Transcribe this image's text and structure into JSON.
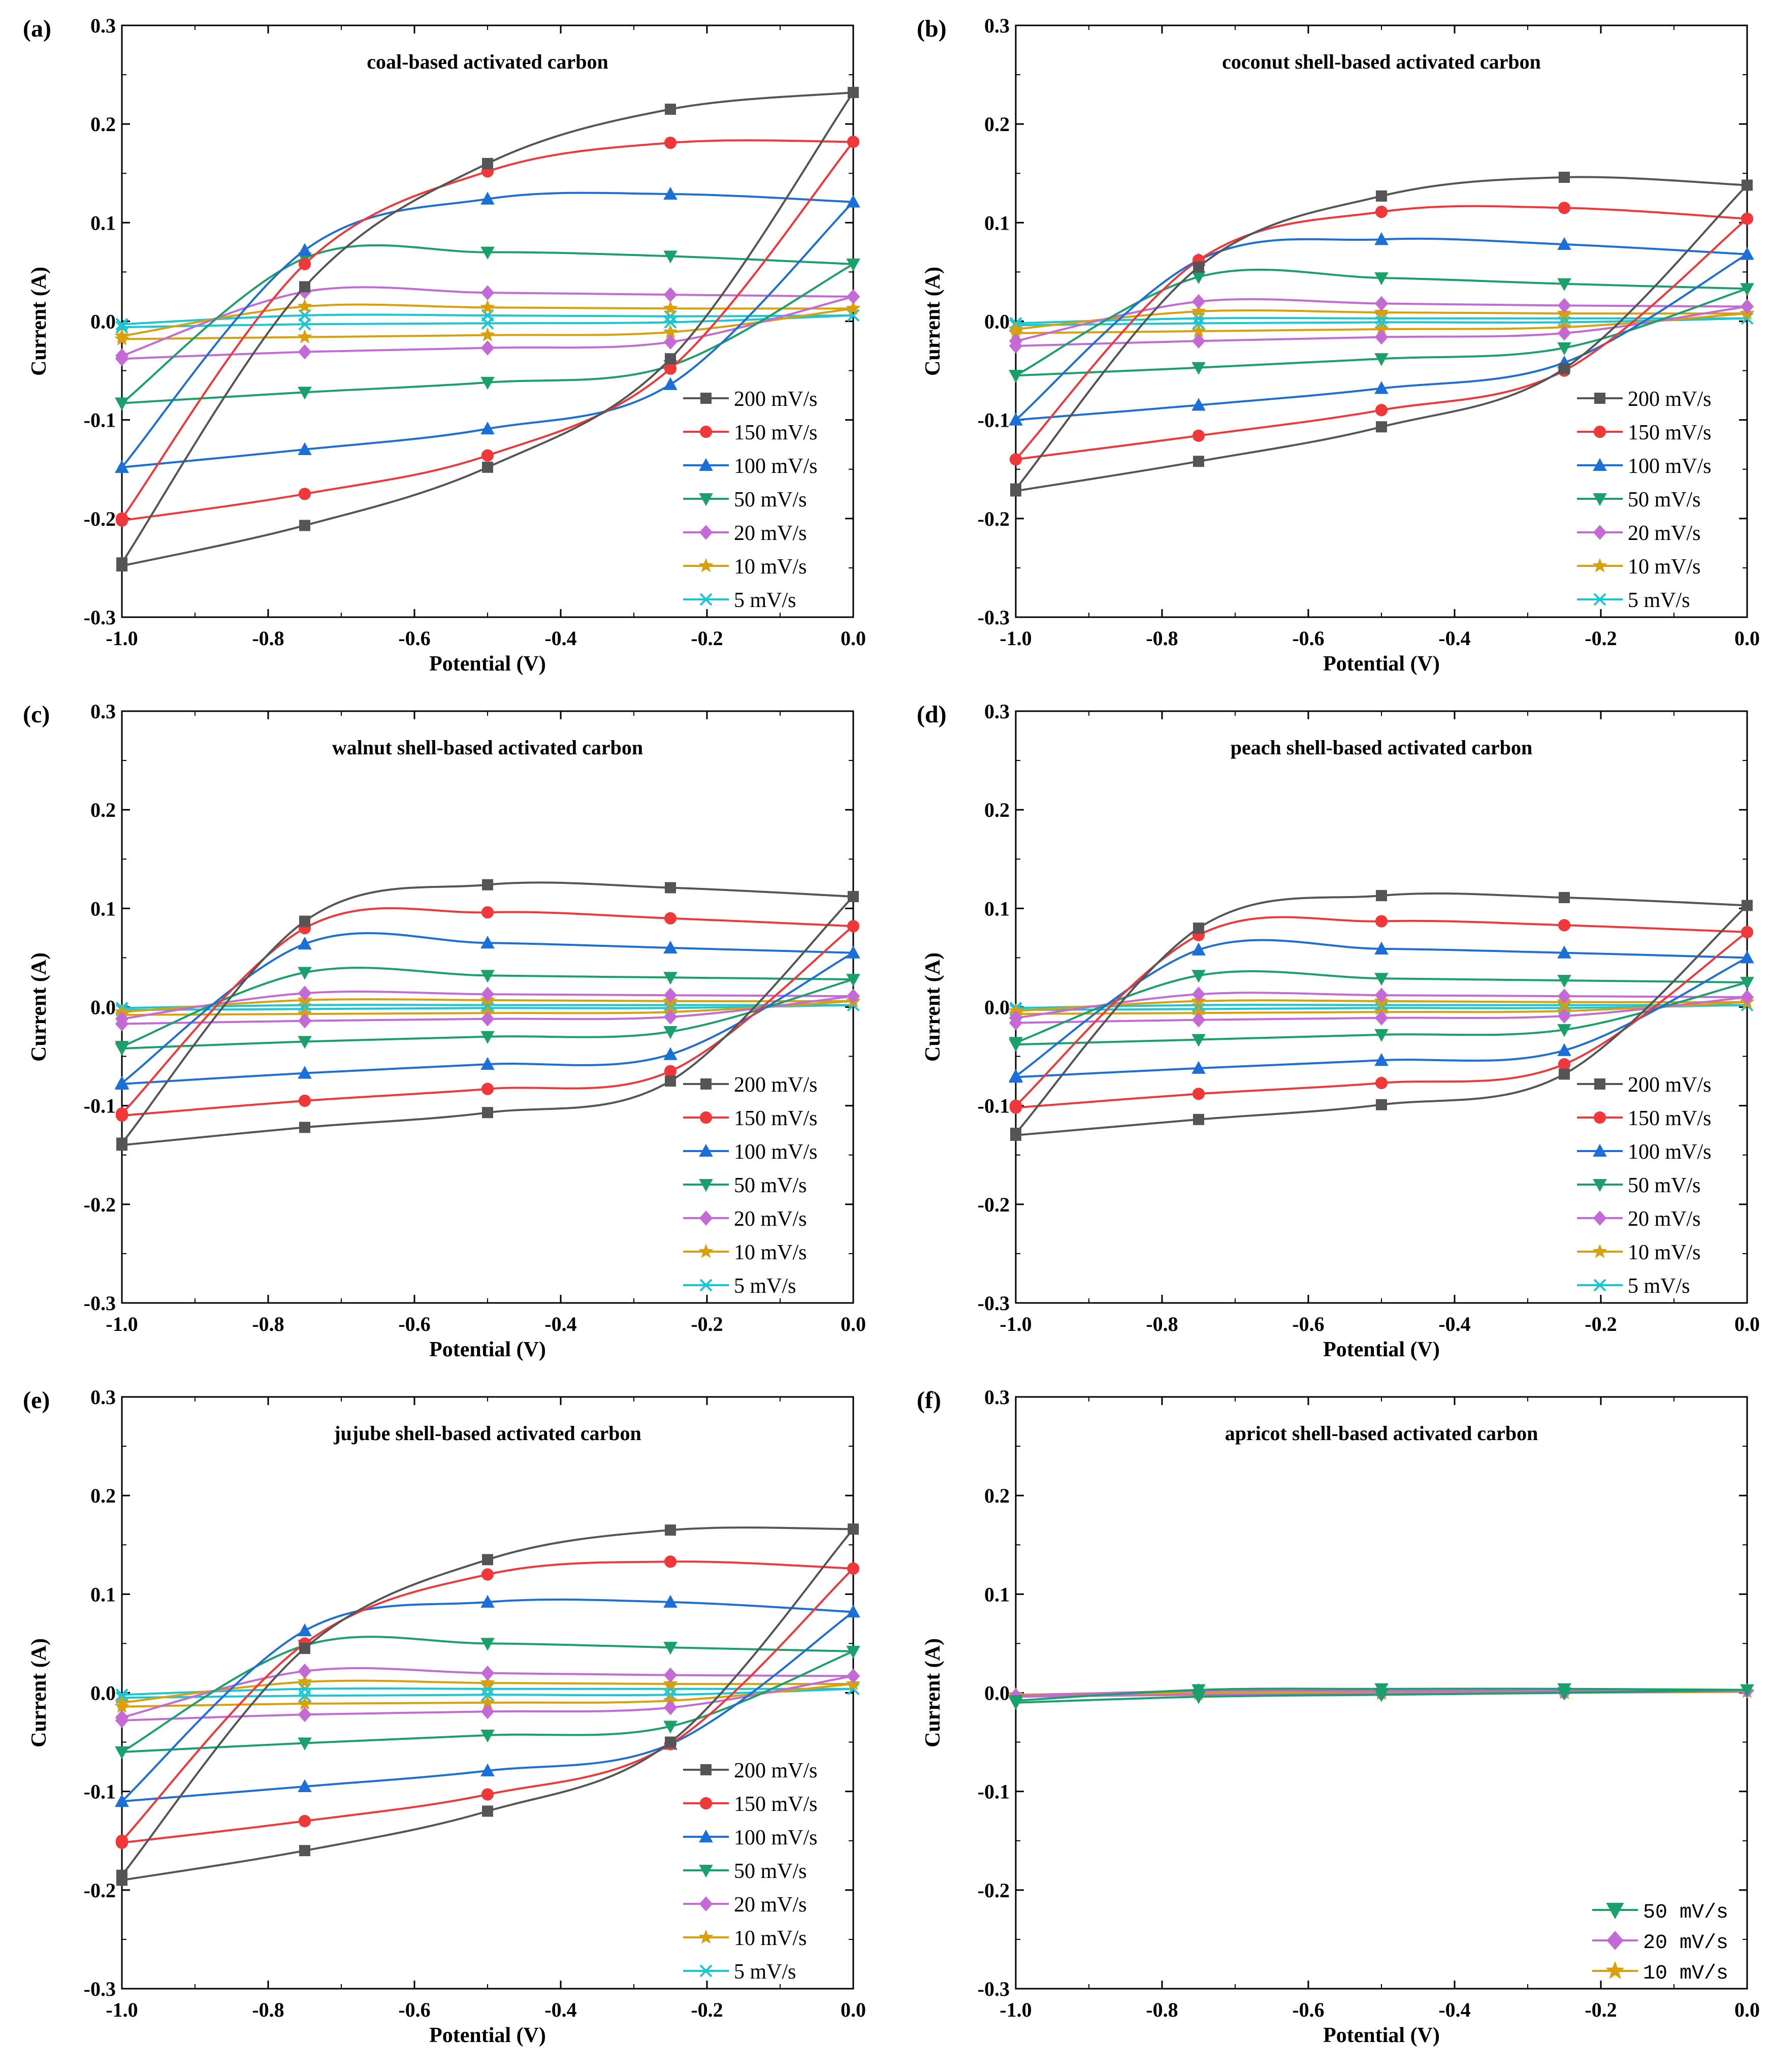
{
  "chart_data": [
    {
      "panel": "(a)",
      "title": "coal-based activated carbon",
      "type": "line",
      "xlabel": "Potential (V)",
      "ylabel": "Current (A)",
      "xlim": [
        -1.0,
        0.0
      ],
      "ylim": [
        -0.3,
        0.3
      ],
      "xticks": [
        "-1.0",
        "-0.8",
        "-0.6",
        "-0.4",
        "-0.2",
        "0.0"
      ],
      "yticks": [
        "-0.3",
        "-0.2",
        "-0.1",
        "0.0",
        "0.1",
        "0.2",
        "0.3"
      ],
      "legend_position": "lower-right",
      "series": [
        {
          "name": "200 mV/s",
          "upper": [
            -0.245,
            0.035,
            0.16,
            0.215,
            0.232
          ],
          "lower": [
            -0.248,
            -0.207,
            -0.148,
            -0.038,
            0.232
          ]
        },
        {
          "name": "150 mV/s",
          "upper": [
            -0.2,
            0.058,
            0.152,
            0.181,
            0.182
          ],
          "lower": [
            -0.202,
            -0.175,
            -0.136,
            -0.048,
            0.182
          ]
        },
        {
          "name": "100 mV/s",
          "upper": [
            -0.148,
            0.072,
            0.124,
            0.129,
            0.121
          ],
          "lower": [
            -0.148,
            -0.13,
            -0.109,
            -0.064,
            0.121
          ]
        },
        {
          "name": "50 mV/s",
          "upper": [
            -0.083,
            0.064,
            0.07,
            0.066,
            0.058
          ],
          "lower": [
            -0.083,
            -0.072,
            -0.062,
            -0.045,
            0.058
          ]
        },
        {
          "name": "20 mV/s",
          "upper": [
            -0.035,
            0.03,
            0.029,
            0.027,
            0.025
          ],
          "lower": [
            -0.038,
            -0.031,
            -0.027,
            -0.021,
            0.025
          ]
        },
        {
          "name": "10 mV/s",
          "upper": [
            -0.015,
            0.015,
            0.014,
            0.013,
            0.013
          ],
          "lower": [
            -0.018,
            -0.016,
            -0.014,
            -0.011,
            0.013
          ]
        },
        {
          "name": "5 mV/s",
          "upper": [
            -0.003,
            0.006,
            0.006,
            0.005,
            0.006
          ],
          "lower": [
            -0.006,
            -0.003,
            -0.002,
            -0.001,
            0.006
          ]
        }
      ]
    },
    {
      "panel": "(b)",
      "title": "coconut shell-based activated carbon",
      "type": "line",
      "xlabel": "Potential (V)",
      "ylabel": "Current (A)",
      "xlim": [
        -1.0,
        0.0
      ],
      "ylim": [
        -0.3,
        0.3
      ],
      "xticks": [
        "-1.0",
        "-0.8",
        "-0.6",
        "-0.4",
        "-0.2",
        "0.0"
      ],
      "yticks": [
        "-0.3",
        "-0.2",
        "-0.1",
        "0.0",
        "0.1",
        "0.2",
        "0.3"
      ],
      "legend_position": "lower-right",
      "series": [
        {
          "name": "200 mV/s",
          "upper": [
            -0.17,
            0.055,
            0.127,
            0.146,
            0.138
          ],
          "lower": [
            -0.172,
            -0.142,
            -0.107,
            -0.048,
            0.138
          ]
        },
        {
          "name": "150 mV/s",
          "upper": [
            -0.14,
            0.062,
            0.111,
            0.115,
            0.104
          ],
          "lower": [
            -0.14,
            -0.116,
            -0.09,
            -0.05,
            0.104
          ]
        },
        {
          "name": "100 mV/s",
          "upper": [
            -0.1,
            0.062,
            0.083,
            0.078,
            0.068
          ],
          "lower": [
            -0.1,
            -0.085,
            -0.068,
            -0.042,
            0.068
          ]
        },
        {
          "name": "50 mV/s",
          "upper": [
            -0.055,
            0.045,
            0.044,
            0.038,
            0.033
          ],
          "lower": [
            -0.055,
            -0.047,
            -0.038,
            -0.027,
            0.033
          ]
        },
        {
          "name": "20 mV/s",
          "upper": [
            -0.02,
            0.02,
            0.018,
            0.016,
            0.015
          ],
          "lower": [
            -0.025,
            -0.02,
            -0.016,
            -0.012,
            0.015
          ]
        },
        {
          "name": "10 mV/s",
          "upper": [
            -0.008,
            0.01,
            0.009,
            0.008,
            0.008
          ],
          "lower": [
            -0.012,
            -0.01,
            -0.008,
            -0.006,
            0.008
          ]
        },
        {
          "name": "5 mV/s",
          "upper": [
            -0.002,
            0.003,
            0.003,
            0.003,
            0.003
          ],
          "lower": [
            -0.004,
            -0.002,
            -0.001,
            -0.001,
            0.003
          ]
        }
      ]
    },
    {
      "panel": "(c)",
      "title": "walnut shell-based activated carbon",
      "type": "line",
      "xlabel": "Potential (V)",
      "ylabel": "Current (A)",
      "xlim": [
        -1.0,
        0.0
      ],
      "ylim": [
        -0.3,
        0.3
      ],
      "xticks": [
        "-1.0",
        "-0.8",
        "-0.6",
        "-0.4",
        "-0.2",
        "0.0"
      ],
      "yticks": [
        "-0.3",
        "-0.2",
        "-0.1",
        "0.0",
        "0.1",
        "0.2",
        "0.3"
      ],
      "legend_position": "lower-right",
      "series": [
        {
          "name": "200 mV/s",
          "upper": [
            -0.138,
            0.087,
            0.124,
            0.121,
            0.112
          ],
          "lower": [
            -0.14,
            -0.122,
            -0.107,
            -0.075,
            0.112
          ]
        },
        {
          "name": "150 mV/s",
          "upper": [
            -0.108,
            0.08,
            0.096,
            0.09,
            0.082
          ],
          "lower": [
            -0.11,
            -0.095,
            -0.083,
            -0.065,
            0.082
          ]
        },
        {
          "name": "100 mV/s",
          "upper": [
            -0.077,
            0.064,
            0.065,
            0.06,
            0.055
          ],
          "lower": [
            -0.078,
            -0.067,
            -0.058,
            -0.048,
            0.055
          ]
        },
        {
          "name": "50 mV/s",
          "upper": [
            -0.04,
            0.035,
            0.032,
            0.03,
            0.028
          ],
          "lower": [
            -0.042,
            -0.035,
            -0.03,
            -0.025,
            0.028
          ]
        },
        {
          "name": "20 mV/s",
          "upper": [
            -0.012,
            0.014,
            0.013,
            0.012,
            0.011
          ],
          "lower": [
            -0.017,
            -0.014,
            -0.012,
            -0.01,
            0.011
          ]
        },
        {
          "name": "10 mV/s",
          "upper": [
            -0.005,
            0.007,
            0.007,
            0.006,
            0.006
          ],
          "lower": [
            -0.008,
            -0.007,
            -0.006,
            -0.005,
            0.006
          ]
        },
        {
          "name": "5 mV/s",
          "upper": [
            -0.001,
            0.002,
            0.002,
            0.002,
            0.002
          ],
          "lower": [
            -0.003,
            -0.002,
            -0.001,
            -0.001,
            0.002
          ]
        }
      ]
    },
    {
      "panel": "(d)",
      "title": "peach shell-based activated carbon",
      "type": "line",
      "xlabel": "Potential (V)",
      "ylabel": "Current (A)",
      "xlim": [
        -1.0,
        0.0
      ],
      "ylim": [
        -0.3,
        0.3
      ],
      "xticks": [
        "-1.0",
        "-0.8",
        "-0.6",
        "-0.4",
        "-0.2",
        "0.0"
      ],
      "yticks": [
        "-0.3",
        "-0.2",
        "-0.1",
        "0.0",
        "0.1",
        "0.2",
        "0.3"
      ],
      "legend_position": "lower-right",
      "series": [
        {
          "name": "200 mV/s",
          "upper": [
            -0.128,
            0.08,
            0.113,
            0.111,
            0.103
          ],
          "lower": [
            -0.13,
            -0.114,
            -0.099,
            -0.068,
            0.103
          ]
        },
        {
          "name": "150 mV/s",
          "upper": [
            -0.1,
            0.073,
            0.087,
            0.083,
            0.076
          ],
          "lower": [
            -0.102,
            -0.088,
            -0.077,
            -0.058,
            0.076
          ]
        },
        {
          "name": "100 mV/s",
          "upper": [
            -0.07,
            0.058,
            0.059,
            0.055,
            0.05
          ],
          "lower": [
            -0.071,
            -0.062,
            -0.054,
            -0.044,
            0.05
          ]
        },
        {
          "name": "50 mV/s",
          "upper": [
            -0.036,
            0.032,
            0.029,
            0.027,
            0.025
          ],
          "lower": [
            -0.038,
            -0.033,
            -0.028,
            -0.023,
            0.025
          ]
        },
        {
          "name": "20 mV/s",
          "upper": [
            -0.011,
            0.013,
            0.012,
            0.011,
            0.01
          ],
          "lower": [
            -0.016,
            -0.013,
            -0.011,
            -0.009,
            0.01
          ]
        },
        {
          "name": "10 mV/s",
          "upper": [
            -0.004,
            0.006,
            0.006,
            0.005,
            0.005
          ],
          "lower": [
            -0.007,
            -0.006,
            -0.005,
            -0.004,
            0.005
          ]
        },
        {
          "name": "5 mV/s",
          "upper": [
            -0.001,
            0.002,
            0.002,
            0.002,
            0.002
          ],
          "lower": [
            -0.003,
            -0.002,
            -0.001,
            -0.001,
            0.002
          ]
        }
      ]
    },
    {
      "panel": "(e)",
      "title": "jujube shell-based activated carbon",
      "type": "line",
      "xlabel": "Potential (V)",
      "ylabel": "Current (A)",
      "xlim": [
        -1.0,
        0.0
      ],
      "ylim": [
        -0.3,
        0.3
      ],
      "xticks": [
        "-1.0",
        "-0.8",
        "-0.6",
        "-0.4",
        "-0.2",
        "0.0"
      ],
      "yticks": [
        "-0.3",
        "-0.2",
        "-0.1",
        "0.0",
        "0.1",
        "0.2",
        "0.3"
      ],
      "legend_position": "lower-right",
      "series": [
        {
          "name": "200 mV/s",
          "upper": [
            -0.185,
            0.045,
            0.135,
            0.165,
            0.166
          ],
          "lower": [
            -0.19,
            -0.16,
            -0.12,
            -0.05,
            0.166
          ]
        },
        {
          "name": "150 mV/s",
          "upper": [
            -0.15,
            0.05,
            0.12,
            0.133,
            0.126
          ],
          "lower": [
            -0.152,
            -0.13,
            -0.103,
            -0.052,
            0.126
          ]
        },
        {
          "name": "100 mV/s",
          "upper": [
            -0.11,
            0.063,
            0.092,
            0.092,
            0.082
          ],
          "lower": [
            -0.11,
            -0.095,
            -0.079,
            -0.052,
            0.082
          ]
        },
        {
          "name": "50 mV/s",
          "upper": [
            -0.06,
            0.048,
            0.05,
            0.046,
            0.042
          ],
          "lower": [
            -0.06,
            -0.051,
            -0.043,
            -0.034,
            0.042
          ]
        },
        {
          "name": "20 mV/s",
          "upper": [
            -0.025,
            0.022,
            0.02,
            0.018,
            0.017
          ],
          "lower": [
            -0.028,
            -0.022,
            -0.019,
            -0.015,
            0.017
          ]
        },
        {
          "name": "10 mV/s",
          "upper": [
            -0.01,
            0.011,
            0.01,
            0.009,
            0.009
          ],
          "lower": [
            -0.014,
            -0.011,
            -0.01,
            -0.008,
            0.009
          ]
        },
        {
          "name": "5 mV/s",
          "upper": [
            -0.002,
            0.004,
            0.004,
            0.004,
            0.004
          ],
          "lower": [
            -0.005,
            -0.003,
            -0.002,
            -0.002,
            0.004
          ]
        }
      ]
    },
    {
      "panel": "(f)",
      "title": "apricot shell-based activated carbon",
      "type": "line",
      "xlabel": "Potential (V)",
      "ylabel": "Current (A)",
      "xlim": [
        -1.0,
        0.0
      ],
      "ylim": [
        -0.3,
        0.3
      ],
      "xticks": [
        "-1.0",
        "-0.8",
        "-0.6",
        "-0.4",
        "-0.2",
        "0.0"
      ],
      "yticks": [
        "-0.3",
        "-0.2",
        "-0.1",
        "0.0",
        "0.1",
        "0.2",
        "0.3"
      ],
      "legend_position": "lower-right",
      "legend_font": "mono",
      "series": [
        {
          "name": "50 mV/s",
          "upper": [
            -0.008,
            0.003,
            0.004,
            0.004,
            0.003
          ],
          "lower": [
            -0.01,
            -0.004,
            -0.002,
            0.0,
            0.003
          ]
        },
        {
          "name": "20 mV/s",
          "upper": [
            -0.003,
            0.002,
            0.002,
            0.002,
            0.002
          ],
          "lower": [
            -0.004,
            -0.002,
            -0.001,
            0.0,
            0.002
          ]
        },
        {
          "name": "10 mV/s",
          "upper": [
            -0.002,
            0.001,
            0.001,
            0.001,
            0.001
          ],
          "lower": [
            -0.003,
            -0.001,
            -0.001,
            0.0,
            0.001
          ]
        }
      ]
    }
  ],
  "series_styles": {
    "200 mV/s": {
      "color": "#555555",
      "marker": "square"
    },
    "150 mV/s": {
      "color": "#f0383a",
      "marker": "circle"
    },
    "100 mV/s": {
      "color": "#1c6fd6",
      "marker": "triangle-up"
    },
    "50 mV/s": {
      "color": "#1aa06a",
      "marker": "triangle-down"
    },
    "20 mV/s": {
      "color": "#c36ad6",
      "marker": "diamond"
    },
    "10 mV/s": {
      "color": "#d9a00b",
      "marker": "star"
    },
    "5 mV/s": {
      "color": "#19c6d1",
      "marker": "cross"
    }
  }
}
